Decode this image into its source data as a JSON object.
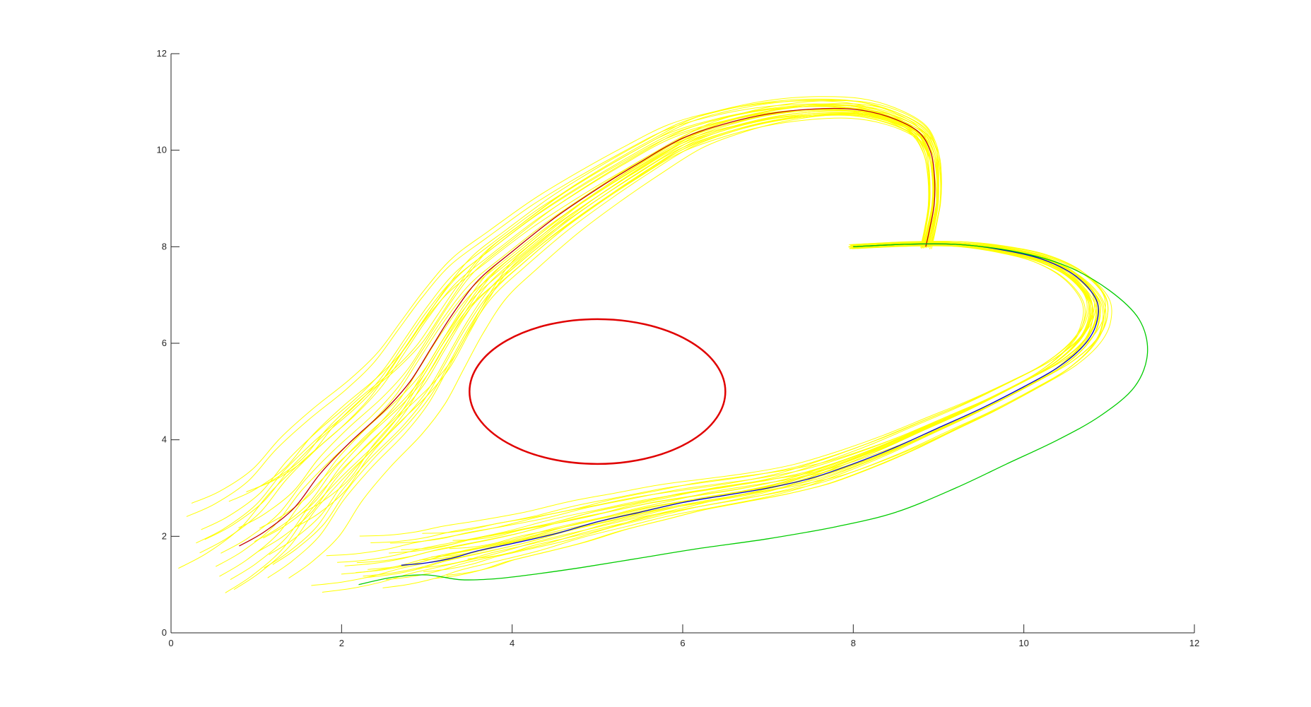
{
  "chart_data": {
    "type": "line",
    "title": "",
    "xlabel": "",
    "ylabel": "",
    "xlim": [
      0,
      12
    ],
    "ylim": [
      0,
      12
    ],
    "x_ticks": [
      "0",
      "2",
      "4",
      "6",
      "8",
      "10",
      "12"
    ],
    "y_ticks": [
      "0",
      "2",
      "4",
      "6",
      "8",
      "10",
      "12"
    ],
    "grid": false,
    "legend": false,
    "colors": {
      "demonstrations": "#ffff00",
      "obstacle": "#e00000",
      "reproduction_red": "#c00000",
      "reproduction_blue": "#0000dd",
      "reproduction_green": "#00cc00",
      "reproduction_black": "#000000",
      "axis": "#262626"
    },
    "obstacle": {
      "type": "ellipse",
      "center": [
        5,
        5
      ],
      "radii": [
        1.5,
        1.5
      ]
    },
    "series": [
      {
        "color": "red",
        "style": "reproduction",
        "points": [
          [
            0.8,
            1.8
          ],
          [
            1.1,
            2.1
          ],
          [
            1.45,
            2.6
          ],
          [
            1.75,
            3.3
          ],
          [
            2.1,
            3.95
          ],
          [
            2.5,
            4.6
          ],
          [
            2.8,
            5.2
          ],
          [
            3.05,
            5.9
          ],
          [
            3.3,
            6.6
          ],
          [
            3.6,
            7.3
          ],
          [
            4.0,
            7.9
          ],
          [
            4.5,
            8.6
          ],
          [
            5.0,
            9.2
          ],
          [
            5.5,
            9.75
          ],
          [
            6.0,
            10.25
          ],
          [
            6.5,
            10.55
          ],
          [
            7.0,
            10.75
          ],
          [
            7.5,
            10.85
          ],
          [
            8.0,
            10.85
          ],
          [
            8.4,
            10.7
          ],
          [
            8.75,
            10.4
          ],
          [
            8.9,
            10.0
          ],
          [
            8.95,
            9.5
          ],
          [
            8.95,
            8.9
          ],
          [
            8.9,
            8.4
          ],
          [
            8.85,
            8.0
          ]
        ]
      },
      {
        "color": "blue",
        "style": "reproduction",
        "points": [
          [
            2.7,
            1.4
          ],
          [
            3.0,
            1.45
          ],
          [
            3.3,
            1.55
          ],
          [
            3.6,
            1.7
          ],
          [
            4.0,
            1.85
          ],
          [
            4.5,
            2.05
          ],
          [
            5.0,
            2.3
          ],
          [
            5.5,
            2.5
          ],
          [
            6.0,
            2.7
          ],
          [
            6.5,
            2.85
          ],
          [
            7.0,
            3.0
          ],
          [
            7.5,
            3.2
          ],
          [
            8.0,
            3.5
          ],
          [
            8.5,
            3.85
          ],
          [
            9.0,
            4.25
          ],
          [
            9.5,
            4.65
          ],
          [
            10.0,
            5.1
          ],
          [
            10.4,
            5.5
          ],
          [
            10.7,
            5.95
          ],
          [
            10.85,
            6.4
          ],
          [
            10.85,
            6.9
          ],
          [
            10.6,
            7.4
          ],
          [
            10.2,
            7.75
          ],
          [
            9.7,
            7.95
          ],
          [
            9.2,
            8.05
          ],
          [
            8.6,
            8.05
          ],
          [
            8.0,
            8.0
          ]
        ]
      },
      {
        "color": "green",
        "style": "reproduction",
        "points": [
          [
            2.2,
            1.0
          ],
          [
            2.6,
            1.15
          ],
          [
            3.0,
            1.2
          ],
          [
            3.4,
            1.1
          ],
          [
            3.8,
            1.12
          ],
          [
            4.2,
            1.2
          ],
          [
            4.8,
            1.35
          ],
          [
            5.5,
            1.55
          ],
          [
            6.2,
            1.75
          ],
          [
            7.0,
            1.95
          ],
          [
            7.8,
            2.2
          ],
          [
            8.5,
            2.5
          ],
          [
            9.2,
            3.0
          ],
          [
            9.8,
            3.5
          ],
          [
            10.4,
            4.0
          ],
          [
            10.9,
            4.5
          ],
          [
            11.3,
            5.1
          ],
          [
            11.45,
            5.8
          ],
          [
            11.35,
            6.5
          ],
          [
            11.0,
            7.1
          ],
          [
            10.5,
            7.6
          ],
          [
            9.9,
            7.9
          ],
          [
            9.2,
            8.05
          ],
          [
            8.6,
            8.05
          ],
          [
            8.0,
            8.0
          ]
        ]
      }
    ]
  }
}
